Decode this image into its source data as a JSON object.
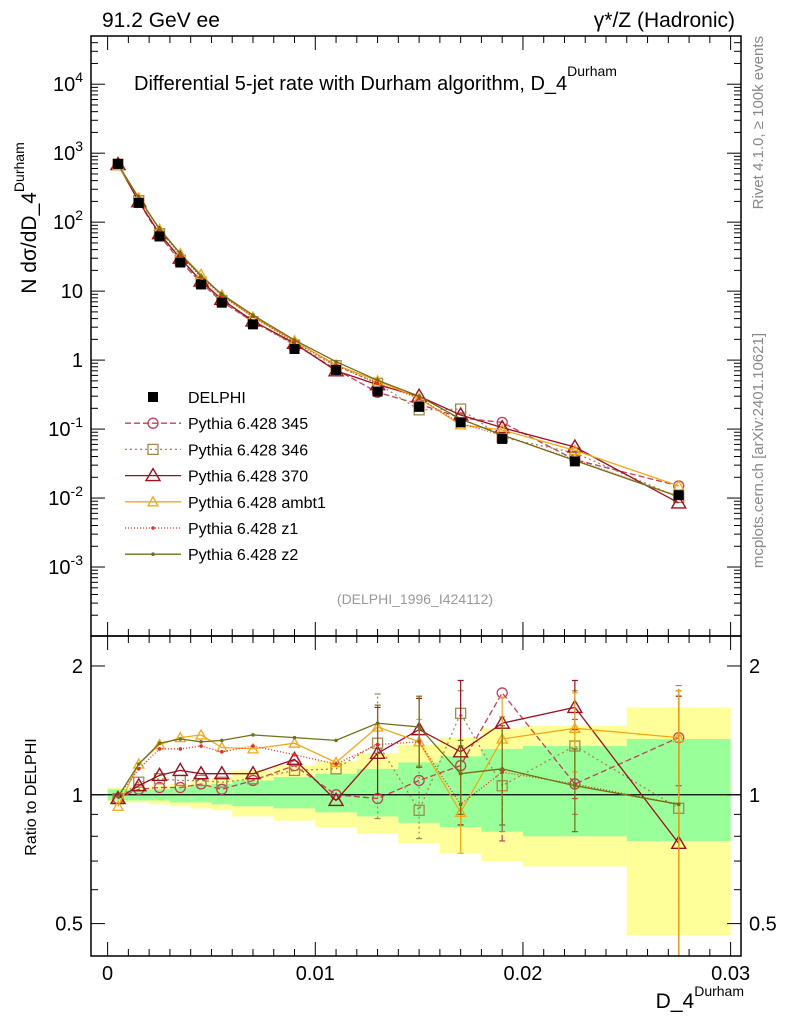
{
  "header": {
    "left": "91.2 GeV ee",
    "right": "γ*/Z (Hadronic)"
  },
  "side": {
    "rivet": "Rivet 4.1.0, ≥ 100k events",
    "mcplots": "mcplots.cern.ch [arXiv:2401.10621]"
  },
  "colors": {
    "DELPHI": "#000000",
    "p345": "#c0405a",
    "p346": "#a08850",
    "p370": "#9b1020",
    "ambt1": "#f0a818",
    "z1": "#e03020",
    "z2": "#707018",
    "band_inner": "#99ff99",
    "band_outer": "#ffff99"
  },
  "chart_data": [
    {
      "type": "line",
      "title": "Differential 5-jet rate with Durham algorithm, D_4^Durham",
      "ylabel": "N dσ/dD_4^Durham",
      "yscale": "log",
      "ylim": [
        0.0001,
        50000
      ],
      "xlim": [
        -0.0008,
        0.0305
      ],
      "analysis_tag": "(DELPHI_1996_I424112)",
      "y_tick_labels": [
        "10^-3",
        "10^-2",
        "10^-1",
        "1",
        "10",
        "10^2",
        "10^3",
        "10^4"
      ],
      "x": [
        0.0005,
        0.0015,
        0.0025,
        0.0035,
        0.0045,
        0.0055,
        0.007,
        0.009,
        0.011,
        0.013,
        0.015,
        0.017,
        0.019,
        0.0225,
        0.0275
      ],
      "series": [
        {
          "name": "DELPHI",
          "marker": "square",
          "values": [
            700,
            190,
            62,
            26,
            12.5,
            6.8,
            3.3,
            1.45,
            0.72,
            0.35,
            0.21,
            0.125,
            0.072,
            0.034,
            0.011
          ]
        },
        {
          "name": "Pythia 6.428 345",
          "marker": "circle",
          "dash": "6,3",
          "values": [
            690,
            198,
            64,
            27,
            13.2,
            7.0,
            3.6,
            1.7,
            0.73,
            0.34,
            0.23,
            0.145,
            0.125,
            0.036,
            0.015
          ]
        },
        {
          "name": "Pythia 6.428 346",
          "marker": "square-open",
          "dash": "2,3",
          "values": [
            690,
            205,
            68,
            28,
            13.5,
            7.3,
            3.6,
            1.65,
            0.83,
            0.46,
            0.19,
            0.195,
            0.076,
            0.045,
            0.0102
          ]
        },
        {
          "name": "Pythia 6.428 370",
          "marker": "triangle",
          "dash": "",
          "values": [
            685,
            198,
            68,
            30,
            14,
            7.6,
            3.7,
            1.75,
            0.7,
            0.44,
            0.3,
            0.16,
            0.105,
            0.055,
            0.0085
          ]
        },
        {
          "name": "Pythia 6.428 ambt1",
          "marker": "triangle-small",
          "dash": "",
          "values": [
            660,
            225,
            79,
            35,
            17.5,
            8.8,
            4.2,
            1.9,
            0.85,
            0.5,
            0.28,
            0.115,
            0.097,
            0.049,
            0.015
          ]
        },
        {
          "name": "Pythia 6.428 z1",
          "marker": "dot",
          "dash": "1,2",
          "values": [
            690,
            220,
            78,
            33,
            16,
            8.5,
            4.3,
            1.8,
            0.84,
            0.46,
            0.28,
            0.12,
            0.082,
            0.036,
            0.0105
          ]
        },
        {
          "name": "Pythia 6.428 z2",
          "marker": "dot",
          "dash": "",
          "values": [
            695,
            225,
            80,
            35,
            16.5,
            9.0,
            4.5,
            1.95,
            0.95,
            0.51,
            0.3,
            0.14,
            0.082,
            0.035,
            0.0105
          ]
        }
      ]
    },
    {
      "type": "line",
      "ylabel": "Ratio to DELPHI",
      "xlabel": "D_4^Durham",
      "yscale": "log",
      "ylim": [
        0.42,
        2.35
      ],
      "xlim": [
        -0.0008,
        0.0305
      ],
      "y_ticks": [
        0.5,
        1,
        2
      ],
      "y_tick_labels": [
        "0.5",
        "1",
        "2"
      ],
      "x_ticks": [
        0,
        0.01,
        0.02,
        0.03
      ],
      "x_tick_labels": [
        "0",
        "0.01",
        "0.02",
        "0.03"
      ],
      "bin_edges": [
        0,
        0.001,
        0.002,
        0.003,
        0.004,
        0.005,
        0.006,
        0.008,
        0.01,
        0.012,
        0.014,
        0.016,
        0.018,
        0.02,
        0.025,
        0.03
      ],
      "band_inner": [
        [
          0.97,
          1.03
        ],
        [
          0.97,
          1.03
        ],
        [
          0.97,
          1.03
        ],
        [
          0.96,
          1.04
        ],
        [
          0.96,
          1.05
        ],
        [
          0.95,
          1.06
        ],
        [
          0.94,
          1.08
        ],
        [
          0.93,
          1.1
        ],
        [
          0.91,
          1.12
        ],
        [
          0.89,
          1.15
        ],
        [
          0.86,
          1.19
        ],
        [
          0.84,
          1.23
        ],
        [
          0.82,
          1.28
        ],
        [
          0.8,
          1.3
        ],
        [
          0.78,
          1.35
        ]
      ],
      "band_outer": [
        [
          0.96,
          1.04
        ],
        [
          0.96,
          1.04
        ],
        [
          0.95,
          1.05
        ],
        [
          0.94,
          1.06
        ],
        [
          0.93,
          1.08
        ],
        [
          0.92,
          1.1
        ],
        [
          0.89,
          1.14
        ],
        [
          0.87,
          1.17
        ],
        [
          0.84,
          1.2
        ],
        [
          0.81,
          1.25
        ],
        [
          0.77,
          1.31
        ],
        [
          0.73,
          1.36
        ],
        [
          0.7,
          1.43
        ],
        [
          0.68,
          1.45
        ],
        [
          0.47,
          1.6
        ]
      ],
      "x": [
        0.0005,
        0.0015,
        0.0025,
        0.0035,
        0.0045,
        0.0055,
        0.007,
        0.009,
        0.011,
        0.013,
        0.015,
        0.017,
        0.019,
        0.0225,
        0.0275
      ],
      "series": [
        {
          "name": "Pythia 6.428 345",
          "values": [
            0.98,
            1.03,
            1.04,
            1.04,
            1.06,
            1.03,
            1.08,
            1.17,
            1.0,
            0.98,
            1.08,
            1.17,
            1.73,
            1.06,
            1.36
          ]
        },
        {
          "name": "Pythia 6.428 346",
          "values": [
            0.98,
            1.07,
            1.09,
            1.08,
            1.08,
            1.07,
            1.09,
            1.14,
            1.15,
            1.32,
            0.92,
            1.55,
            1.05,
            1.3,
            0.93
          ]
        },
        {
          "name": "Pythia 6.428 370",
          "values": [
            0.98,
            1.05,
            1.11,
            1.14,
            1.12,
            1.12,
            1.12,
            1.21,
            0.97,
            1.25,
            1.42,
            1.26,
            1.47,
            1.6,
            0.77
          ]
        },
        {
          "name": "Pythia 6.428 ambt1",
          "values": [
            0.94,
            1.18,
            1.31,
            1.36,
            1.38,
            1.29,
            1.28,
            1.32,
            1.19,
            1.44,
            1.33,
            0.91,
            1.35,
            1.43,
            1.36
          ]
        },
        {
          "name": "Pythia 6.428 z1",
          "values": [
            0.99,
            1.15,
            1.28,
            1.28,
            1.3,
            1.26,
            1.3,
            1.24,
            1.18,
            1.31,
            1.33,
            0.95,
            1.13,
            1.06,
            0.95
          ]
        },
        {
          "name": "Pythia 6.428 z2",
          "values": [
            0.99,
            1.18,
            1.32,
            1.35,
            1.33,
            1.34,
            1.38,
            1.36,
            1.34,
            1.47,
            1.44,
            1.12,
            1.15,
            1.05,
            0.95
          ]
        }
      ],
      "error_bars": {
        "Pythia 6.428 345": [
          [
            12,
            0.78,
            1.14
          ],
          [
            13,
            0.98,
            1.5
          ],
          [
            14,
            1.05,
            1.75
          ]
        ],
        "Pythia 6.428 346": [
          [
            9,
            0.88,
            1.72
          ],
          [
            10,
            0.79,
            1.34
          ],
          [
            11,
            1.3,
            1.75
          ],
          [
            12,
            0.82,
            1.52
          ],
          [
            13,
            0.9,
            1.75
          ],
          [
            14,
            0.38,
            1.8
          ]
        ],
        "Pythia 6.428 370": [
          [
            9,
            1.0,
            1.6
          ],
          [
            10,
            1.16,
            1.68
          ],
          [
            11,
            0.85,
            1.85
          ],
          [
            13,
            1.42,
            1.85
          ],
          [
            14,
            0.4,
            1.7
          ]
        ],
        "Pythia 6.428 ambt1": [
          [
            10,
            1.17,
            1.5
          ],
          [
            11,
            0.73,
            1.12
          ],
          [
            12,
            1.02,
            1.69
          ],
          [
            13,
            1.13,
            1.73
          ],
          [
            14,
            0.4,
            1.75
          ]
        ],
        "Pythia 6.428 z2": [
          [
            9,
            1.25,
            1.62
          ],
          [
            10,
            1.16,
            1.7
          ],
          [
            11,
            0.9,
            1.34
          ],
          [
            12,
            0.85,
            1.45
          ],
          [
            13,
            0.82,
            1.28
          ]
        ]
      }
    }
  ]
}
